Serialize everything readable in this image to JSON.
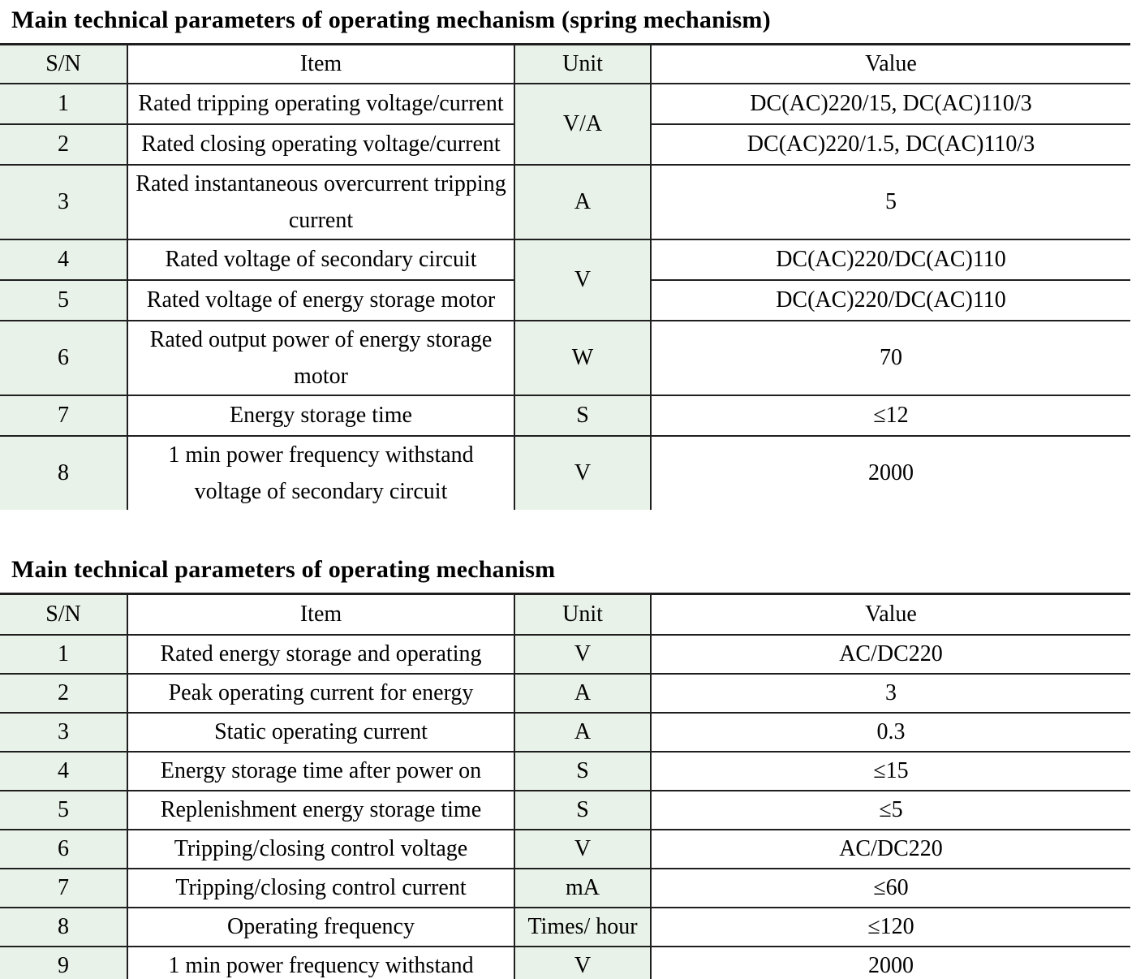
{
  "page": {
    "background_color": "#ffffff",
    "border_color": "#1f1f1f",
    "shaded_cell_color": "#e9f2e9"
  },
  "table1": {
    "title": "Main technical parameters of operating mechanism (spring mechanism)",
    "headers": {
      "sn": "S/N",
      "item": "Item",
      "unit": "Unit",
      "value": "Value"
    },
    "rows": [
      {
        "sn": "1",
        "item": "Rated tripping operating voltage/current",
        "unit": "V/A",
        "value": "DC(AC)220/15, DC(AC)110/3"
      },
      {
        "sn": "2",
        "item": "Rated closing operating voltage/current",
        "value": "DC(AC)220/1.5, DC(AC)110/3"
      },
      {
        "sn": "3",
        "item": "Rated instantaneous overcurrent tripping current",
        "unit": "A",
        "value": "5"
      },
      {
        "sn": "4",
        "item": "Rated voltage of secondary circuit",
        "unit": "V",
        "value": "DC(AC)220/DC(AC)110"
      },
      {
        "sn": "5",
        "item": "Rated voltage of energy storage motor",
        "value": "DC(AC)220/DC(AC)110"
      },
      {
        "sn": "6",
        "item": "Rated output power of energy storage motor",
        "unit": "W",
        "value": "70"
      },
      {
        "sn": "7",
        "item": "Energy storage time",
        "unit": "S",
        "value": "≤12"
      },
      {
        "sn": "8",
        "item": "1 min power frequency withstand voltage of secondary circuit",
        "unit": "V",
        "value": "2000"
      }
    ]
  },
  "table2": {
    "title": "Main technical parameters of operating mechanism",
    "headers": {
      "sn": "S/N",
      "item": "Item",
      "unit": "Unit",
      "value": "Value"
    },
    "rows": [
      {
        "sn": "1",
        "item": "Rated energy storage and operating",
        "unit": "V",
        "value": "AC/DC220"
      },
      {
        "sn": "2",
        "item": "Peak operating current for energy",
        "unit": "A",
        "value": "3"
      },
      {
        "sn": "3",
        "item": "Static operating current",
        "unit": "A",
        "value": "0.3"
      },
      {
        "sn": "4",
        "item": "Energy storage time after power on",
        "unit": "S",
        "value": "≤15"
      },
      {
        "sn": "5",
        "item": "Replenishment energy storage time",
        "unit": "S",
        "value": "≤5"
      },
      {
        "sn": "6",
        "item": "Tripping/closing control voltage",
        "unit": "V",
        "value": "AC/DC220"
      },
      {
        "sn": "7",
        "item": "Tripping/closing control current",
        "unit": "mA",
        "value": "≤60"
      },
      {
        "sn": "8",
        "item": "Operating frequency",
        "unit": "Times/ hour",
        "value": "≤120"
      },
      {
        "sn": "9",
        "item": "1 min power frequency withstand",
        "unit": "V",
        "value": "2000"
      }
    ]
  }
}
